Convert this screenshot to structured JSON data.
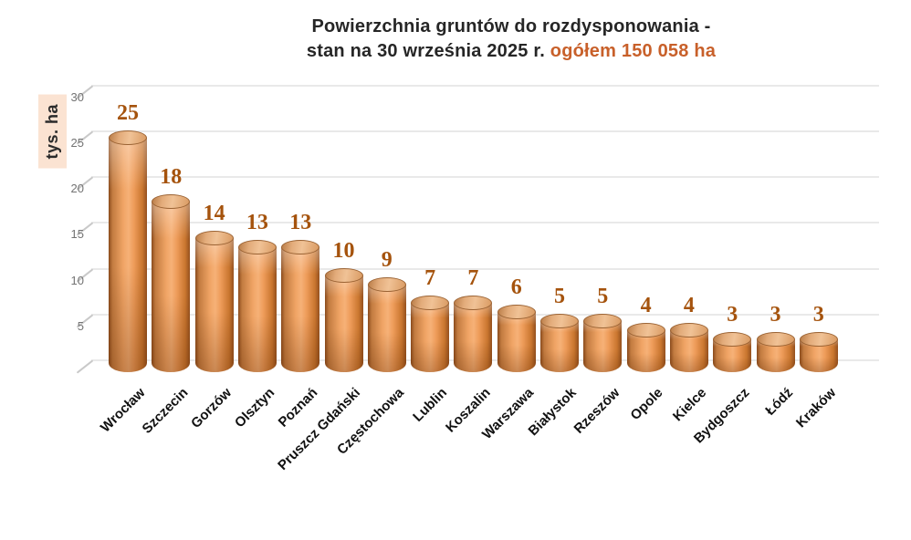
{
  "title": {
    "line1": "Powierzchnia gruntów do rozdysponowania -",
    "line2_dark": "stan na 30 września 2025 r.",
    "line2_accent": "ogółem 150 058 ha"
  },
  "colors": {
    "accent": "#C8602A",
    "value_label": "#A5530D",
    "bar_light": "#F6B177",
    "bar_dark": "#8A4A1C",
    "grid": "#E9E9E9",
    "ytick_text": "#737373",
    "xtick_text": "#111111",
    "axis_label_bg": "#FBE3D2",
    "title_text": "#262626"
  },
  "chart_data": {
    "type": "bar",
    "style": "3d-cylinder",
    "title": "Powierzchnia gruntów do rozdysponowania - stan na 30 września 2025 r. ogółem 150 058 ha",
    "total_note": "ogółem 150 058 ha",
    "xlabel": "",
    "ylabel": "tys. ha",
    "ylim": [
      0,
      30
    ],
    "yticks": [
      5,
      10,
      15,
      20,
      25,
      30
    ],
    "grid": true,
    "legend": false,
    "categories": [
      "Wrocław",
      "Szczecin",
      "Gorzów",
      "Olsztyn",
      "Poznań",
      "Pruszcz Gdański",
      "Częstochowa",
      "Lublin",
      "Koszalin",
      "Warszawa",
      "Białystok",
      "Rzeszów",
      "Opole",
      "Kielce",
      "Bydgoszcz",
      "Łódź",
      "Kraków"
    ],
    "values": [
      25,
      18,
      14,
      13,
      13,
      10,
      9,
      7,
      7,
      6,
      5,
      5,
      4,
      4,
      3,
      3,
      3
    ]
  }
}
